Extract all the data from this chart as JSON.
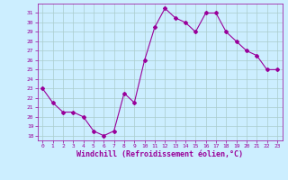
{
  "x": [
    0,
    1,
    2,
    3,
    4,
    5,
    6,
    7,
    8,
    9,
    10,
    11,
    12,
    13,
    14,
    15,
    16,
    17,
    18,
    19,
    20,
    21,
    22,
    23
  ],
  "y": [
    23.0,
    21.5,
    20.5,
    20.5,
    20.0,
    18.5,
    18.0,
    18.5,
    22.5,
    21.5,
    26.0,
    29.5,
    31.5,
    30.5,
    30.0,
    29.0,
    31.0,
    31.0,
    29.0,
    28.0,
    27.0,
    26.5,
    25.0,
    25.0
  ],
  "line_color": "#990099",
  "marker": "D",
  "markersize": 2.0,
  "bg_color": "#cceeff",
  "grid_color": "#aacccc",
  "ylim": [
    17.5,
    32.0
  ],
  "xlim": [
    -0.5,
    23.5
  ],
  "yticks": [
    18,
    19,
    20,
    21,
    22,
    23,
    24,
    25,
    26,
    27,
    28,
    29,
    30,
    31
  ],
  "xticks": [
    0,
    1,
    2,
    3,
    4,
    5,
    6,
    7,
    8,
    9,
    10,
    11,
    12,
    13,
    14,
    15,
    16,
    17,
    18,
    19,
    20,
    21,
    22,
    23
  ],
  "xlabel": "Windchill (Refroidissement éolien,°C)",
  "xlabel_color": "#990099",
  "tick_color": "#990099"
}
